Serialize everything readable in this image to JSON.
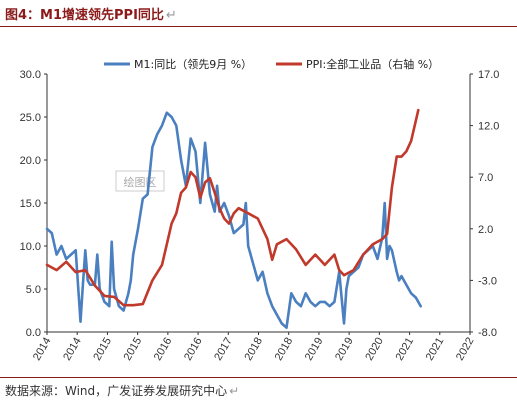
{
  "figure_title": "图4：M1增速领先PPI同比",
  "return_mark": "↵",
  "source_note": "数据来源：Wind，广发证券发展研究中心",
  "watermark": "绘图区",
  "colors": {
    "m1": "#4a7fc0",
    "ppi": "#c0392b",
    "title": "#8b1a1a",
    "axis": "#333333"
  },
  "chart_data": {
    "type": "line",
    "title": "",
    "x_tick_labels": [
      "2014",
      "2014",
      "2015",
      "2015",
      "2016",
      "2016",
      "2017",
      "2018",
      "2018",
      "2019",
      "2019",
      "2020",
      "2021",
      "2021",
      "2022"
    ],
    "xlim": [
      2014.0,
      2022.83
    ],
    "y_left": {
      "lim": [
        0,
        30
      ],
      "ticks": [
        "0.0",
        "5.0",
        "10.0",
        "15.0",
        "20.0",
        "25.0",
        "30.0"
      ]
    },
    "y_right": {
      "lim": [
        -8,
        17
      ],
      "ticks": [
        "-8.0",
        "-3.0",
        "2.0",
        "7.0",
        "12.0",
        "17.0"
      ]
    },
    "legend_position": "top",
    "series": [
      {
        "name": "M1:同比（领先9月 %）",
        "axis": "left",
        "x": [
          2014.0,
          2014.1,
          2014.2,
          2014.3,
          2014.4,
          2014.5,
          2014.6,
          2014.7,
          2014.75,
          2014.8,
          2014.85,
          2014.9,
          2015.0,
          2015.05,
          2015.1,
          2015.2,
          2015.3,
          2015.35,
          2015.4,
          2015.5,
          2015.6,
          2015.7,
          2015.75,
          2015.8,
          2015.9,
          2016.0,
          2016.1,
          2016.2,
          2016.3,
          2016.4,
          2016.5,
          2016.6,
          2016.7,
          2016.8,
          2016.9,
          2017.0,
          2017.1,
          2017.2,
          2017.3,
          2017.4,
          2017.45,
          2017.5,
          2017.55,
          2017.6,
          2017.7,
          2017.8,
          2017.9,
          2018.0,
          2018.1,
          2018.15,
          2018.2,
          2018.3,
          2018.4,
          2018.5,
          2018.6,
          2018.7,
          2018.8,
          2018.9,
          2019.0,
          2019.1,
          2019.2,
          2019.3,
          2019.4,
          2019.5,
          2019.6,
          2019.7,
          2019.8,
          2019.9,
          2020.0,
          2020.1,
          2020.2,
          2020.25,
          2020.3,
          2020.4,
          2020.5,
          2020.6,
          2020.7,
          2020.8,
          2020.9,
          2021.0,
          2021.05,
          2021.1,
          2021.15,
          2021.2,
          2021.3,
          2021.35,
          2021.4,
          2021.5,
          2021.6,
          2021.7,
          2021.8
        ],
        "y": [
          12.0,
          11.5,
          9.0,
          10.0,
          8.5,
          9.0,
          9.5,
          1.2,
          5.5,
          9.5,
          6.0,
          5.5,
          5.5,
          9.0,
          5.0,
          3.5,
          3.0,
          10.5,
          5.0,
          3.0,
          2.5,
          4.5,
          6.0,
          9.0,
          12.0,
          15.5,
          16.0,
          21.5,
          23.0,
          24.0,
          25.5,
          25.0,
          24.0,
          20.0,
          17.0,
          22.5,
          21.0,
          15.0,
          22.0,
          16.0,
          15.0,
          14.0,
          17.0,
          14.0,
          15.0,
          13.5,
          11.5,
          12.0,
          12.5,
          15.0,
          10.0,
          8.0,
          6.0,
          7.0,
          4.5,
          3.0,
          2.0,
          1.0,
          0.5,
          4.5,
          3.5,
          3.0,
          4.5,
          3.5,
          3.0,
          3.5,
          3.5,
          3.0,
          3.5,
          7.0,
          1.0,
          5.0,
          6.5,
          7.0,
          7.5,
          9.0,
          9.5,
          10.0,
          8.5,
          11.0,
          15.0,
          8.5,
          10.0,
          9.5,
          7.0,
          6.0,
          6.5,
          5.5,
          4.5,
          4.0,
          3.0
        ]
      },
      {
        "name": "PPI:全部工业品（右轴 %）",
        "axis": "right",
        "x": [
          2014.0,
          2014.2,
          2014.4,
          2014.6,
          2014.8,
          2015.0,
          2015.2,
          2015.4,
          2015.6,
          2015.8,
          2016.0,
          2016.2,
          2016.4,
          2016.5,
          2016.6,
          2016.7,
          2016.8,
          2016.9,
          2017.0,
          2017.1,
          2017.2,
          2017.3,
          2017.4,
          2017.5,
          2017.6,
          2017.7,
          2017.8,
          2017.9,
          2018.0,
          2018.2,
          2018.4,
          2018.6,
          2018.7,
          2018.8,
          2019.0,
          2019.2,
          2019.4,
          2019.6,
          2019.8,
          2020.0,
          2020.1,
          2020.2,
          2020.4,
          2020.6,
          2020.8,
          2021.0,
          2021.1,
          2021.2,
          2021.3,
          2021.4,
          2021.5,
          2021.6,
          2021.7,
          2021.75
        ],
        "y": [
          -1.5,
          -2.0,
          -1.2,
          -2.2,
          -2.0,
          -3.5,
          -4.5,
          -4.6,
          -5.4,
          -5.4,
          -5.3,
          -3.0,
          -1.5,
          0.5,
          2.5,
          3.5,
          5.5,
          6.0,
          7.5,
          7.0,
          5.0,
          6.5,
          6.9,
          5.5,
          4.0,
          3.0,
          2.5,
          3.5,
          4.0,
          3.5,
          3.0,
          1.0,
          -1.0,
          0.5,
          1.0,
          0.0,
          -1.5,
          -0.5,
          -1.5,
          -0.5,
          -2.0,
          -2.5,
          -2.0,
          -0.5,
          0.5,
          1.0,
          1.5,
          6.0,
          9.0,
          9.0,
          9.5,
          10.5,
          12.5,
          13.5
        ]
      }
    ]
  }
}
